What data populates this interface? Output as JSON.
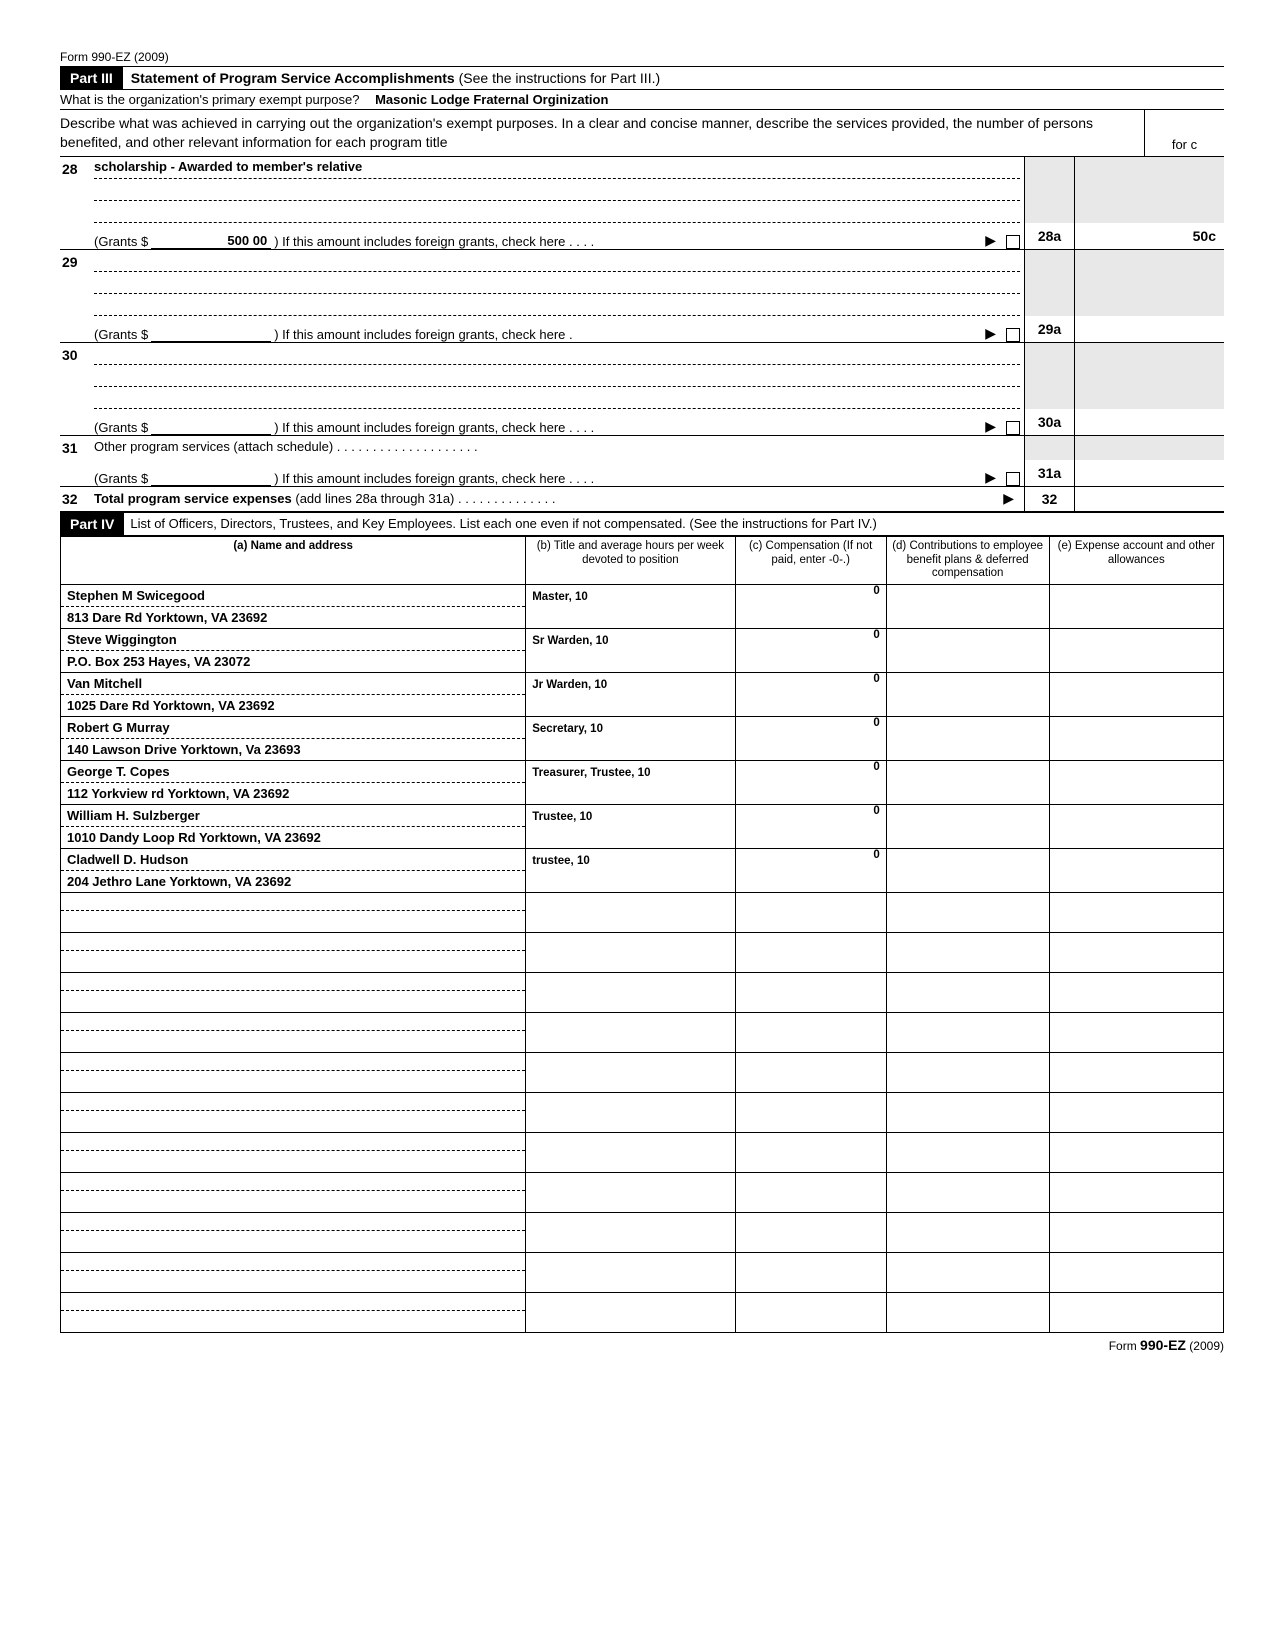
{
  "form_id": "Form 990-EZ (2009)",
  "part3": {
    "badge": "Part III",
    "title": "Statement of Program Service Accomplishments",
    "title_paren": "(See the instructions for Part III.)",
    "q_exempt": "What is the organization's primary exempt purpose?",
    "exempt_answer": "Masonic Lodge Fraternal Orginization",
    "intro": "Describe what was achieved in carrying out the organization's exempt purposes. In a clear and concise manner, describe the services provided, the number of persons benefited, and other relevant information for each program title",
    "expenses_hdr_top": "",
    "expenses_hdr_bot": "for c",
    "lines": [
      {
        "num": "28",
        "desc": "scholarship - Awarded to member's relative",
        "grants_label": "(Grants $",
        "grants_amt": "500 00",
        "grants_rest": ")  If this amount includes foreign grants, check here   .   .   .   .",
        "code": "28a",
        "amount": "50c"
      },
      {
        "num": "29",
        "desc": "",
        "grants_label": "(Grants $",
        "grants_amt": "",
        "grants_rest": ")  If this amount includes foreign grants, check here   .",
        "code": "29a",
        "amount": ""
      },
      {
        "num": "30",
        "desc": "",
        "grants_label": "(Grants $",
        "grants_amt": "",
        "grants_rest": ")  If this amount includes foreign grants, check here   .   .   .   .",
        "code": "30a",
        "amount": ""
      }
    ],
    "line31_num": "31",
    "line31_text": "Other program services (attach schedule) .   .   .   .   .   .   .   .   .   .   .   .   .   .   .   .   .   .   .   .",
    "line31_grants_label": "(Grants $",
    "line31_grants_rest": ")  If this amount includes foreign grants, check here   .   .   .   .",
    "line31_code": "31a",
    "line32_num": "32",
    "line32_text": "Total program service expenses",
    "line32_paren": "(add lines 28a through 31a)   .   .   .   .   .   .   .   .   .   .   .   .   .   .",
    "line32_code": "32"
  },
  "part4": {
    "badge": "Part IV",
    "instr": "List of Officers, Directors, Trustees, and Key Employees. List each one even if not compensated. (See the instructions for Part IV.)",
    "cols": {
      "a": "(a) Name and address",
      "b": "(b) Title and average hours per week devoted to position",
      "c": "(c) Compensation (If not paid, enter -0-.)",
      "d": "(d) Contributions to employee benefit plans & deferred compensation",
      "e": "(e) Expense account and other allowances"
    },
    "rows": [
      {
        "name": "Stephen M Swicegood",
        "addr": "813 Dare Rd Yorktown, VA 23692",
        "title": "Master, 10",
        "comp": "0"
      },
      {
        "name": "Steve Wiggington",
        "addr": "P.O. Box 253 Hayes, VA 23072",
        "title": "Sr Warden, 10",
        "comp": "0"
      },
      {
        "name": "Van Mitchell",
        "addr": "1025 Dare Rd Yorktown, VA 23692",
        "title": "Jr Warden, 10",
        "comp": "0"
      },
      {
        "name": "Robert G Murray",
        "addr": "140 Lawson Drive Yorktown, Va 23693",
        "title": "Secretary, 10",
        "comp": "0"
      },
      {
        "name": "George T. Copes",
        "addr": "112 Yorkview rd Yorktown, VA 23692",
        "title": "Treasurer, Trustee, 10",
        "comp": "0"
      },
      {
        "name": "William H. Sulzberger",
        "addr": "1010 Dandy Loop Rd Yorktown, VA 23692",
        "title": "Trustee, 10",
        "comp": "0"
      },
      {
        "name": "Cladwell D. Hudson",
        "addr": "204 Jethro Lane Yorktown, VA 23692",
        "title": "trustee, 10",
        "comp": "0"
      }
    ],
    "empty_rows": 11
  },
  "footer": {
    "text_pre": "Form ",
    "form": "990-EZ",
    "year": " (2009)"
  }
}
